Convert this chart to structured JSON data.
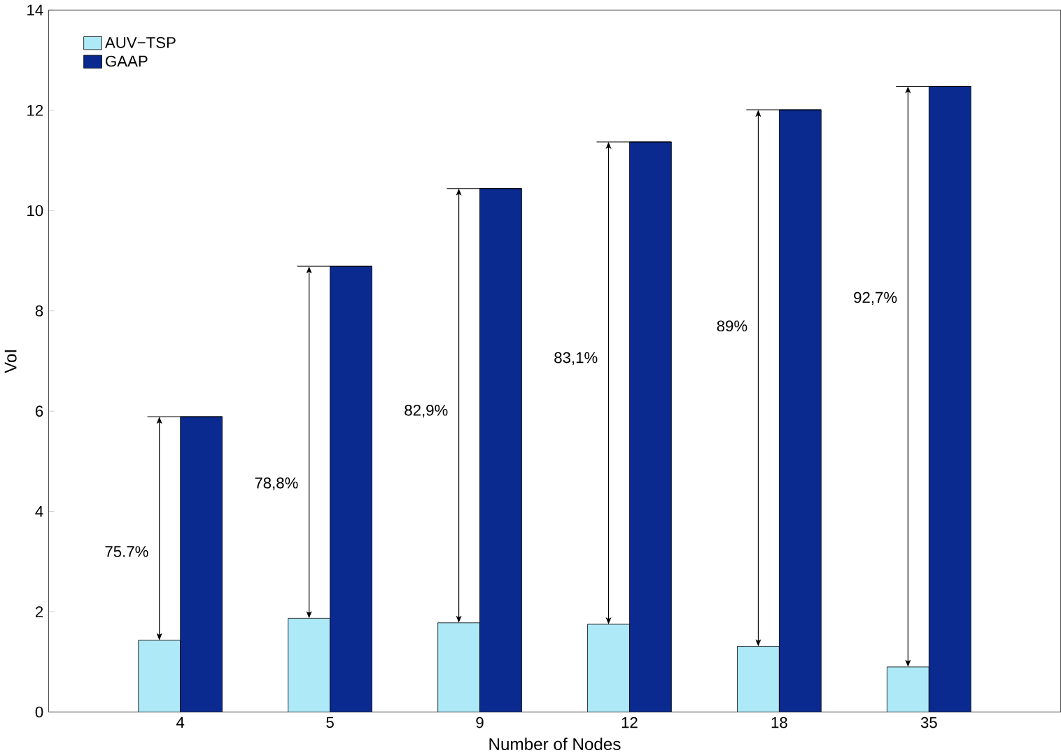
{
  "chart_data": {
    "type": "bar",
    "xlabel": "Number of Nodes",
    "ylabel": "VoI",
    "categories": [
      "4",
      "5",
      "9",
      "12",
      "18",
      "35"
    ],
    "series": [
      {
        "name": "AUV−TSP",
        "color": "#aee9f8",
        "values": [
          1.43,
          1.87,
          1.78,
          1.75,
          1.31,
          0.9
        ]
      },
      {
        "name": "GAAP",
        "color": "#0a2a8f",
        "values": [
          5.89,
          8.89,
          10.44,
          11.37,
          12.01,
          12.48
        ]
      }
    ],
    "ylim": [
      0,
      14
    ],
    "yticks": [
      0,
      2,
      4,
      6,
      8,
      10,
      12,
      14
    ],
    "legend": "top left",
    "grid": false,
    "annotations": [
      {
        "text": "75.7%",
        "x": "4",
        "y": 3.2
      },
      {
        "text": "78,8%",
        "x": "5",
        "y": 4.55
      },
      {
        "text": "82,9%",
        "x": "9",
        "y": 6.0
      },
      {
        "text": "83,1%",
        "x": "12",
        "y": 7.05
      },
      {
        "text": "89%",
        "x": "18",
        "y": 7.7
      },
      {
        "text": "92,7%",
        "x": "35",
        "y": 8.25
      }
    ]
  }
}
